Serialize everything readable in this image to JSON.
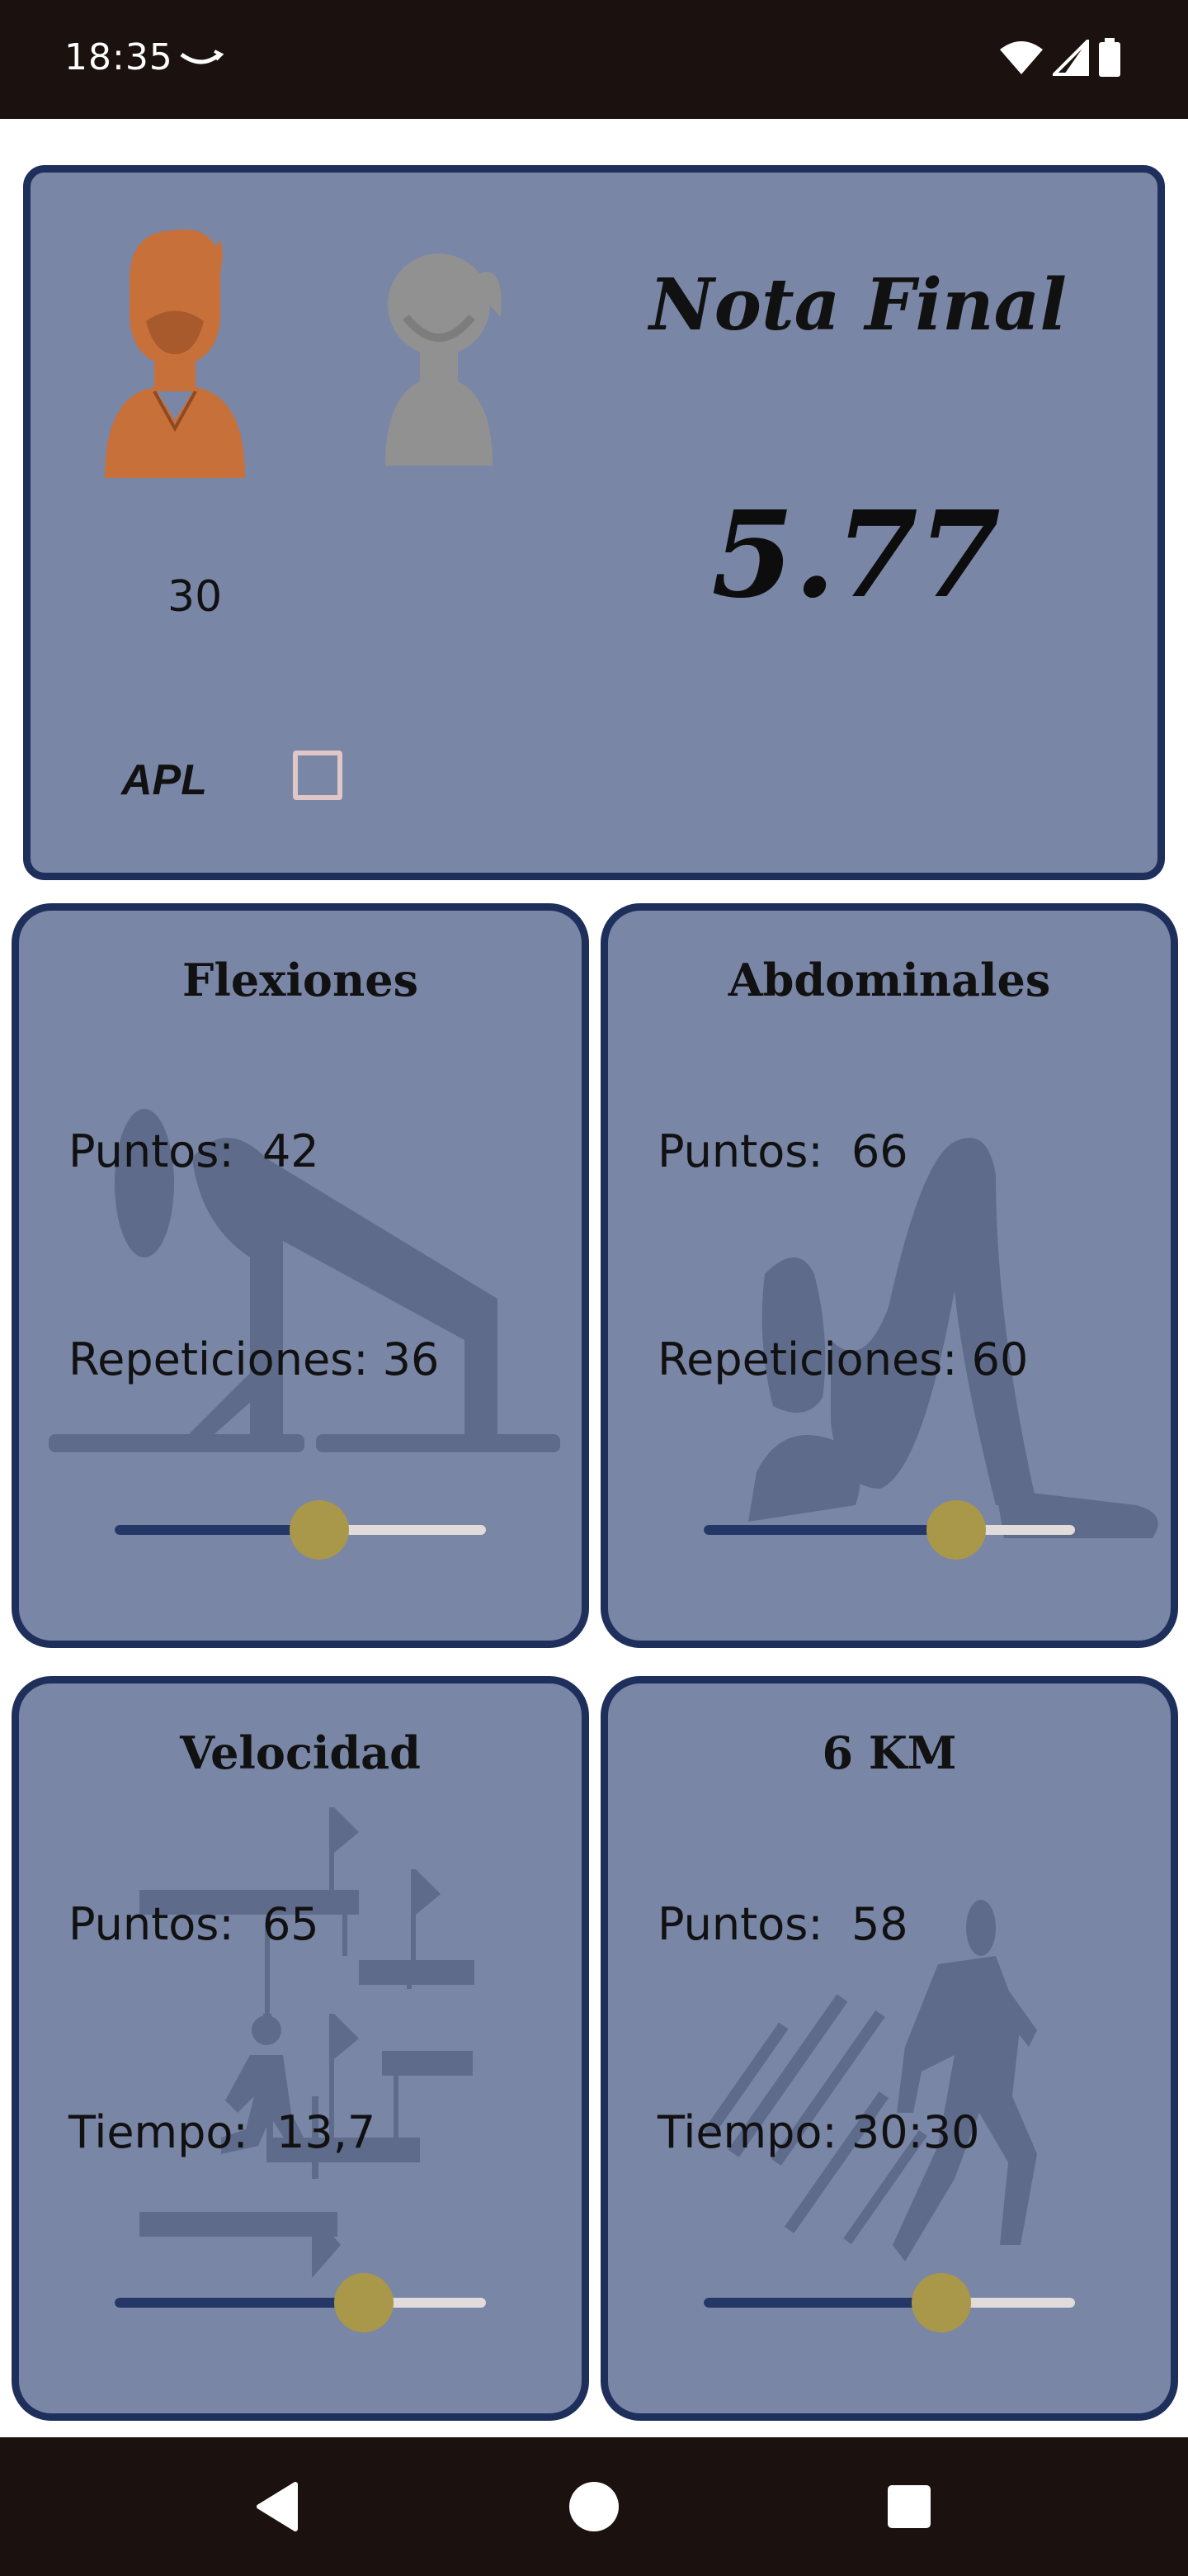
{
  "status_bar": {
    "time": "18:35"
  },
  "main_card": {
    "title": "Nota Final",
    "score": "5.77",
    "age": "30",
    "apl_label": "APL",
    "apl_checked": false
  },
  "tiles": [
    {
      "title": "Flexiones",
      "line1_label": "Puntos:",
      "line1_value": "42",
      "line2_label": "Repeticiones:",
      "line2_value": "36",
      "slider_fraction": 0.55
    },
    {
      "title": "Abdominales",
      "line1_label": "Puntos:",
      "line1_value": "66",
      "line2_label": "Repeticiones:",
      "line2_value": "60",
      "slider_fraction": 0.68
    },
    {
      "title": "Velocidad",
      "line1_label": "Puntos:",
      "line1_value": "65",
      "line2_label": "Tiempo:",
      "line2_value": "13,7",
      "slider_fraction": 0.67
    },
    {
      "title": "6 KM",
      "line1_label": "Puntos:",
      "line1_value": "58",
      "line2_label": "Tiempo:",
      "line2_value": "30:30",
      "slider_fraction": 0.64
    }
  ],
  "colors": {
    "card_bg": "#7986a6",
    "border": "#1f2f5b",
    "thumb": "#a9974a",
    "male_icon": "#c8703a"
  }
}
